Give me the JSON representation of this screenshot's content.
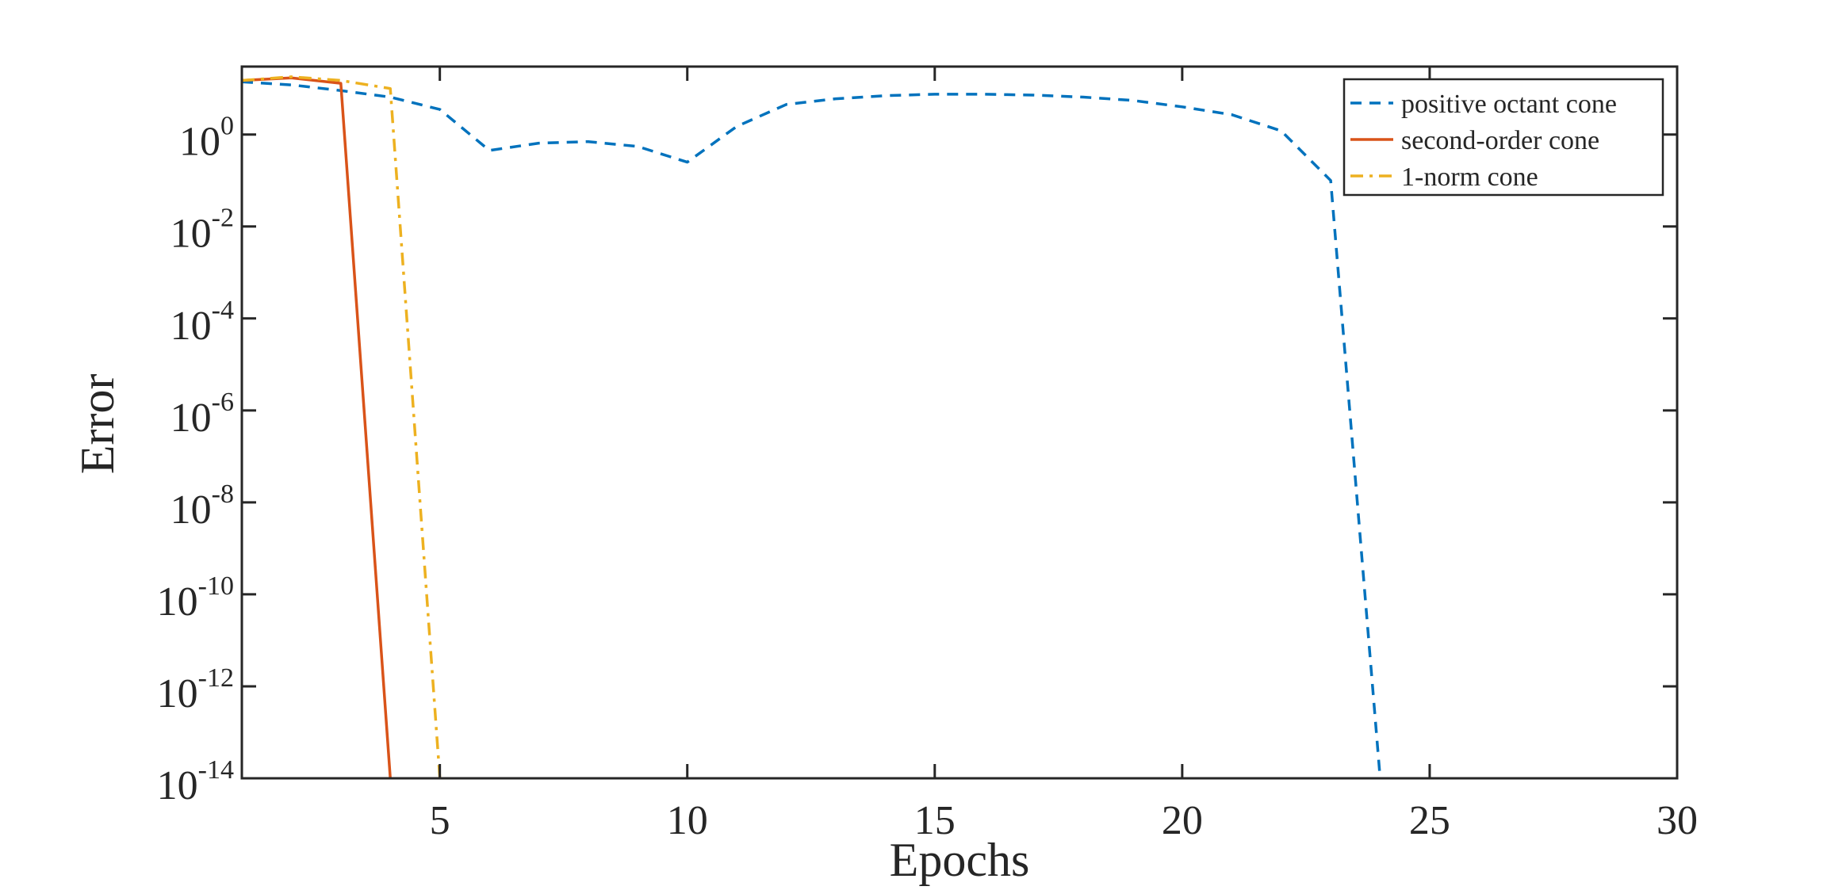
{
  "chart_data": {
    "type": "line",
    "title": "",
    "xlabel": "Epochs",
    "ylabel": "Error",
    "xlim": [
      1,
      30
    ],
    "ylim": [
      1e-14,
      30
    ],
    "yscale": "log",
    "grid": false,
    "legend_position": "top-right",
    "x_ticks": [
      {
        "value": 5,
        "label": "5"
      },
      {
        "value": 10,
        "label": "10"
      },
      {
        "value": 15,
        "label": "15"
      },
      {
        "value": 20,
        "label": "20"
      },
      {
        "value": 25,
        "label": "25"
      },
      {
        "value": 30,
        "label": "30"
      }
    ],
    "y_ticks": [
      {
        "value": 1,
        "base": "10",
        "exp": "0"
      },
      {
        "value": 0.01,
        "base": "10",
        "exp": "-2"
      },
      {
        "value": 0.0001,
        "base": "10",
        "exp": "-4"
      },
      {
        "value": 1e-06,
        "base": "10",
        "exp": "-6"
      },
      {
        "value": 1e-08,
        "base": "10",
        "exp": "-8"
      },
      {
        "value": 1e-10,
        "base": "10",
        "exp": "-10"
      },
      {
        "value": 1e-12,
        "base": "10",
        "exp": "-12"
      },
      {
        "value": 1e-14,
        "base": "10",
        "exp": "-14"
      }
    ],
    "series": [
      {
        "name": "positive octant cone",
        "color": "#0072BD",
        "style": "dashed",
        "x": [
          1,
          2,
          3,
          4,
          5,
          6,
          7,
          8,
          9,
          10,
          11,
          12,
          13,
          14,
          15,
          16,
          17,
          18,
          19,
          20,
          21,
          22,
          23,
          24
        ],
        "y": [
          14,
          12,
          9,
          6.5,
          3.5,
          0.45,
          0.65,
          0.7,
          0.55,
          0.25,
          1.5,
          4.5,
          6,
          7,
          7.5,
          7.5,
          7.2,
          6.5,
          5.5,
          4,
          2.7,
          1.2,
          0.1,
          1e-14
        ]
      },
      {
        "name": "second-order cone",
        "color": "#D95319",
        "style": "solid",
        "x": [
          1,
          2,
          3,
          4
        ],
        "y": [
          15,
          17,
          13,
          1e-14
        ]
      },
      {
        "name": "1-norm cone",
        "color": "#EDB120",
        "style": "dashdot",
        "x": [
          1,
          2,
          3,
          4,
          5
        ],
        "y": [
          15,
          18,
          15,
          10,
          1e-14
        ]
      }
    ]
  }
}
